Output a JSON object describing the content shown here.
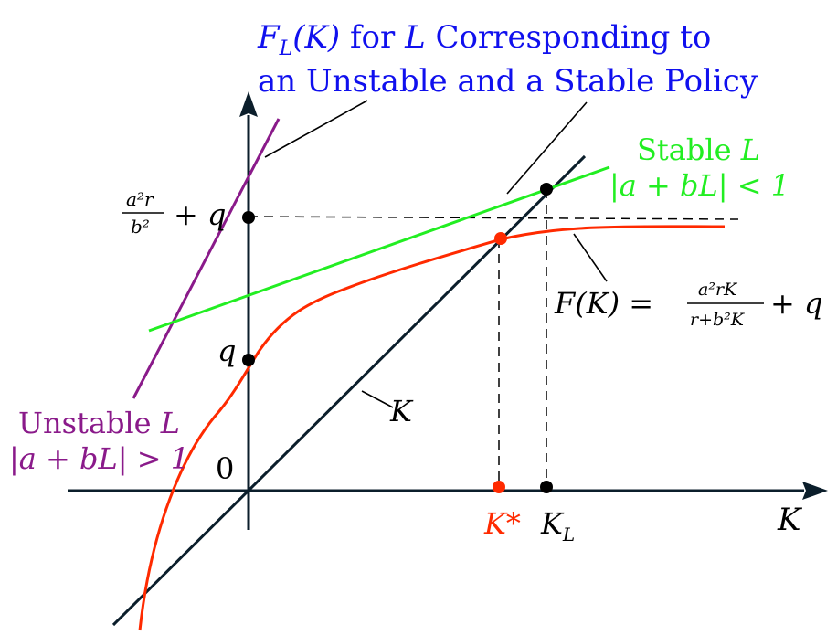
{
  "title": {
    "line1_prefix": "F",
    "line1_sub": "L",
    "line1_arg": "(K)",
    "line1_rest": " for ",
    "line1_L": "L",
    "line1_end": " Corresponding to",
    "line2": "an Unstable and a Stable Policy"
  },
  "axis": {
    "x_label": "K",
    "origin": "0",
    "q_label": "q",
    "level_num": "a²r",
    "level_den": "b²",
    "level_plus": "+ q"
  },
  "stable": {
    "line1_text": "Stable ",
    "line1_L": "L",
    "line2": "|a + bL| < 1"
  },
  "unstable": {
    "line1_text": "Unstable ",
    "line1_L": "L",
    "line2": "|a + bL| > 1"
  },
  "curve": {
    "lhs": "F(K) =",
    "num": "a²rK",
    "den": "r+b²K",
    "plus": "+ q"
  },
  "diagonal_label": "K",
  "points": {
    "k_star": "K*",
    "k_l_main": "K",
    "k_l_sub": "L"
  },
  "colors": {
    "curve": "#ff2a00",
    "stable": "#22ee22",
    "unstable": "#8a1a8a",
    "title": "#1010ee",
    "axis": "#0b1e2b",
    "k_star": "#ff2a00"
  }
}
